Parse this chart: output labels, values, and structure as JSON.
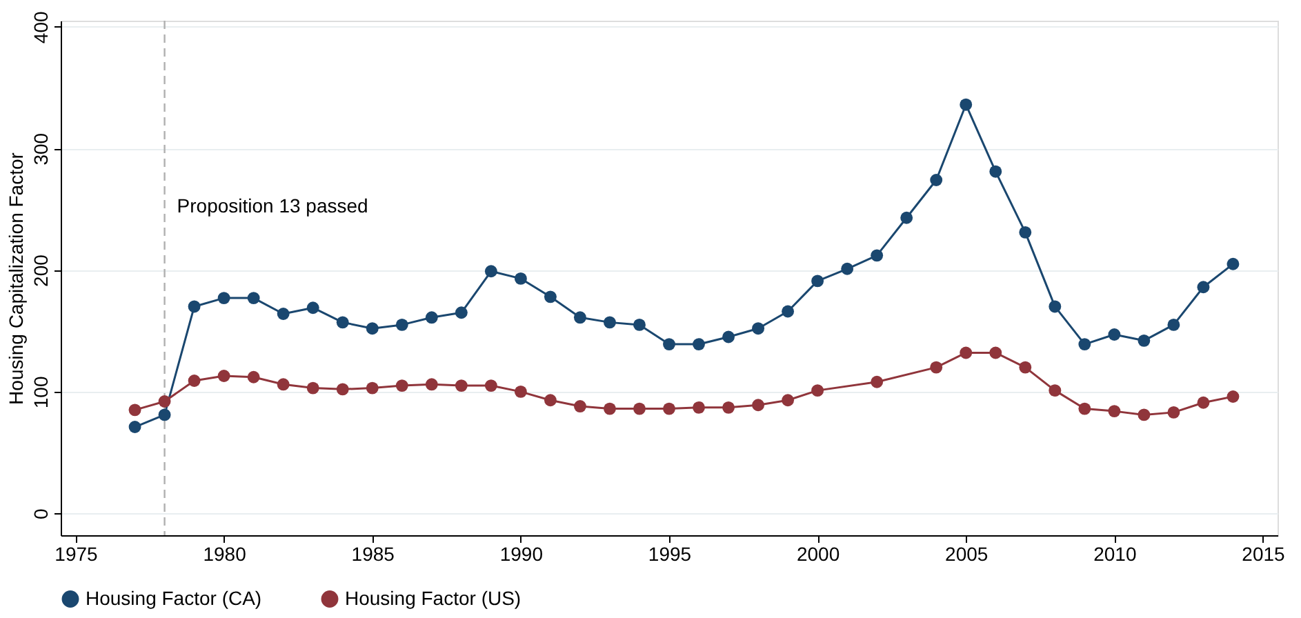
{
  "chart_data": {
    "type": "line",
    "ylabel": "Housing Capitalization Factor",
    "xlim": [
      1974.5,
      2015.5
    ],
    "xticks": [
      1975,
      1980,
      1985,
      1990,
      1995,
      2000,
      2005,
      2010,
      2015
    ],
    "ylim": [
      -18,
      405
    ],
    "yticks": [
      0,
      100,
      200,
      300,
      400
    ],
    "grid": "y",
    "legend": "bottom",
    "marker": "circle",
    "line_style": "solid",
    "ref_lines": [
      {
        "axis": "x",
        "value": 1978,
        "label": "Proposition 13 passed",
        "color": "#b0b0b0",
        "line_style": "dashed"
      }
    ],
    "series": [
      {
        "name": "Housing Factor (CA)",
        "color": "#1a476f",
        "x": [
          1977,
          1978,
          1979,
          1980,
          1981,
          1982,
          1983,
          1984,
          1985,
          1986,
          1987,
          1988,
          1989,
          1990,
          1991,
          1992,
          1993,
          1994,
          1995,
          1996,
          1997,
          1998,
          1999,
          2000,
          2001,
          2002,
          2003,
          2004,
          2005,
          2006,
          2007,
          2008,
          2009,
          2010,
          2011,
          2012,
          2013,
          2014
        ],
        "values": [
          71,
          81,
          170,
          177,
          177,
          164,
          169,
          157,
          152,
          155,
          161,
          165,
          199,
          193,
          178,
          161,
          157,
          155,
          139,
          139,
          145,
          152,
          166,
          191,
          201,
          212,
          243,
          274,
          336,
          281,
          231,
          170,
          139,
          147,
          142,
          155,
          186,
          205
        ]
      },
      {
        "name": "Housing Factor (US)",
        "color": "#90353b",
        "x": [
          1977,
          1978,
          1979,
          1980,
          1981,
          1982,
          1983,
          1984,
          1985,
          1986,
          1987,
          1988,
          1989,
          1990,
          1991,
          1992,
          1993,
          1994,
          1995,
          1996,
          1997,
          1998,
          1999,
          2000,
          2002,
          2004,
          2005,
          2006,
          2007,
          2008,
          2009,
          2010,
          2011,
          2012,
          2013,
          2014
        ],
        "values": [
          85,
          92,
          109,
          113,
          112,
          106,
          103,
          102,
          103,
          105,
          106,
          105,
          105,
          100,
          93,
          88,
          86,
          86,
          86,
          87,
          87,
          89,
          93,
          101,
          108,
          120,
          132,
          132,
          120,
          101,
          86,
          84,
          81,
          83,
          91,
          96
        ]
      }
    ]
  }
}
